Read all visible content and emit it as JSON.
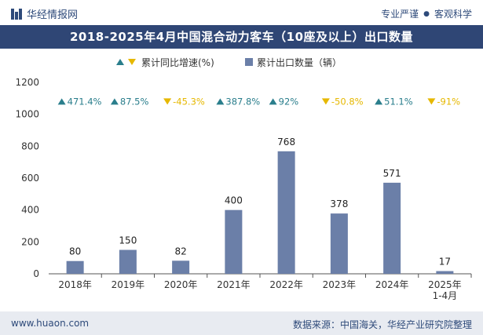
{
  "header": {
    "logo_text": "华经情报网",
    "tagline_a": "专业严谨",
    "tagline_b": "客观科学"
  },
  "chart_data": {
    "type": "bar",
    "title": "2018-2025年4月中国混合动力客车（10座及以上）出口数量",
    "categories": [
      "2018年",
      "2019年",
      "2020年",
      "2021年",
      "2022年",
      "2023年",
      "2024年",
      "2025年\n1-4月"
    ],
    "series": [
      {
        "name": "累计出口数量（辆）",
        "values": [
          80,
          150,
          82,
          400,
          768,
          378,
          571,
          17
        ],
        "color": "#6b7fa8"
      }
    ],
    "growth_series": {
      "name": "累计同比增速(%)",
      "labels": [
        "471.4%",
        "87.5%",
        "-45.3%",
        "387.8%",
        "92%",
        "-50.8%",
        "51.1%",
        "-91%"
      ],
      "direction": [
        "up",
        "up",
        "down",
        "up",
        "up",
        "down",
        "up",
        "down"
      ],
      "up_color": "#2a7e8c",
      "down_color": "#e6b800"
    },
    "ylim": [
      0,
      1200
    ],
    "yticks": [
      0,
      200,
      400,
      600,
      800,
      1000,
      1200
    ],
    "legend_position": "top-center",
    "grid": false
  },
  "footer": {
    "website": "www.huaon.com",
    "source": "数据来源：中国海关，华经产业研究院整理"
  }
}
